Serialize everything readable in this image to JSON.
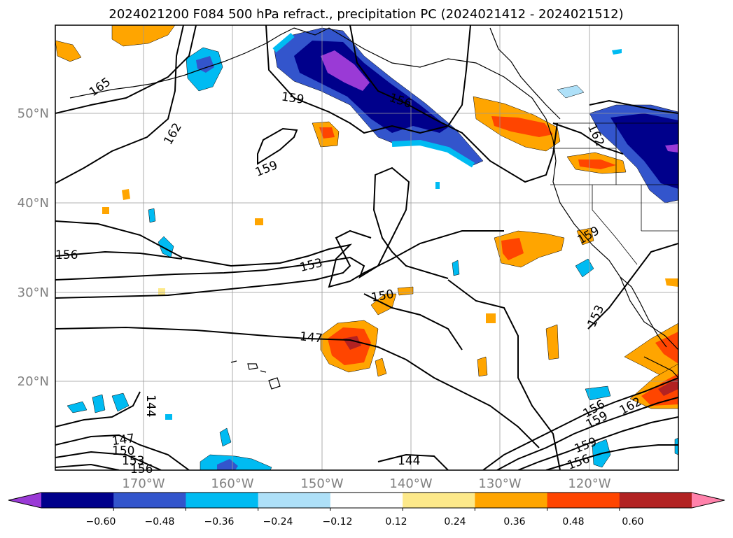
{
  "title": "2024021200 F084 500 hPa refract., precipitation PC (2024021412 - 2024021512)",
  "lat_labels": [
    "50°N",
    "40°N",
    "30°N",
    "20°N"
  ],
  "lon_labels": [
    "170°W",
    "160°W",
    "150°W",
    "140°W",
    "130°W",
    "120°W"
  ],
  "contour_labels": [
    "165",
    "162",
    "159",
    "159",
    "156",
    "162",
    "156",
    "153",
    "150",
    "147",
    "159",
    "153",
    "144",
    "147",
    "150",
    "153",
    "156",
    "144",
    "156",
    "159",
    "162",
    "159",
    "156"
  ],
  "colorbar": {
    "ticks": [
      "−0.60",
      "−0.48",
      "−0.36",
      "−0.24",
      "−0.12",
      "0.12",
      "0.24",
      "0.36",
      "0.48",
      "0.60"
    ],
    "colors": [
      "#9a3ad6",
      "#00008b",
      "#3355cc",
      "#00bbf2",
      "#aee0f8",
      "#ffffff",
      "#fde98a",
      "#ffa500",
      "#ff4500",
      "#b22222",
      "#ff82ab"
    ]
  }
}
